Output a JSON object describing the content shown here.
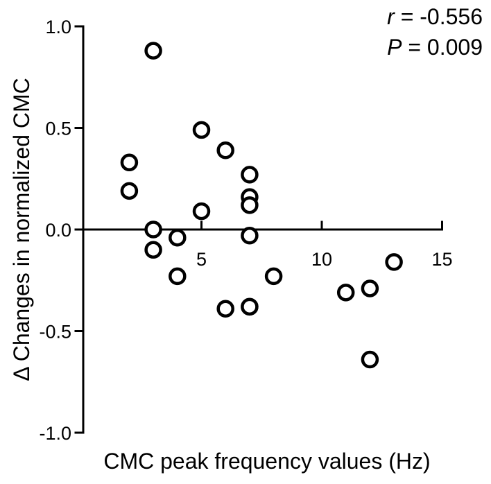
{
  "chart_data": {
    "type": "scatter",
    "title": "",
    "xlabel": "CMC peak frequency values (Hz)",
    "ylabel": "Δ Changes in normalized CMC",
    "xlim": [
      0,
      15
    ],
    "ylim": [
      -1.0,
      1.0
    ],
    "x_ticks": [
      5,
      10,
      15
    ],
    "x_tick_labels": [
      "5",
      "10",
      "15"
    ],
    "y_ticks": [
      1.0,
      0.5,
      0.0,
      -0.5,
      -1.0
    ],
    "y_tick_labels": [
      "1.0",
      "0.5",
      "0.0",
      "-0.5",
      "-1.0"
    ],
    "grid": false,
    "marker": "open-circle",
    "series": [
      {
        "x": [
          2,
          2,
          3,
          3,
          3,
          4,
          4,
          5,
          5,
          6,
          6,
          7,
          7,
          7,
          7,
          7,
          7,
          8,
          11,
          12,
          12,
          13
        ],
        "y": [
          0.33,
          0.19,
          0.88,
          0.0,
          -0.1,
          -0.04,
          -0.23,
          0.49,
          0.09,
          0.39,
          -0.39,
          0.27,
          0.16,
          0.12,
          -0.03,
          -0.38,
          -0.38,
          -0.23,
          -0.31,
          -0.29,
          -0.64,
          -0.16
        ]
      }
    ],
    "annotations": {
      "r_symbol": "r",
      "r_value": " = -0.556",
      "p_symbol": "P",
      "p_value": " = 0.009"
    }
  }
}
